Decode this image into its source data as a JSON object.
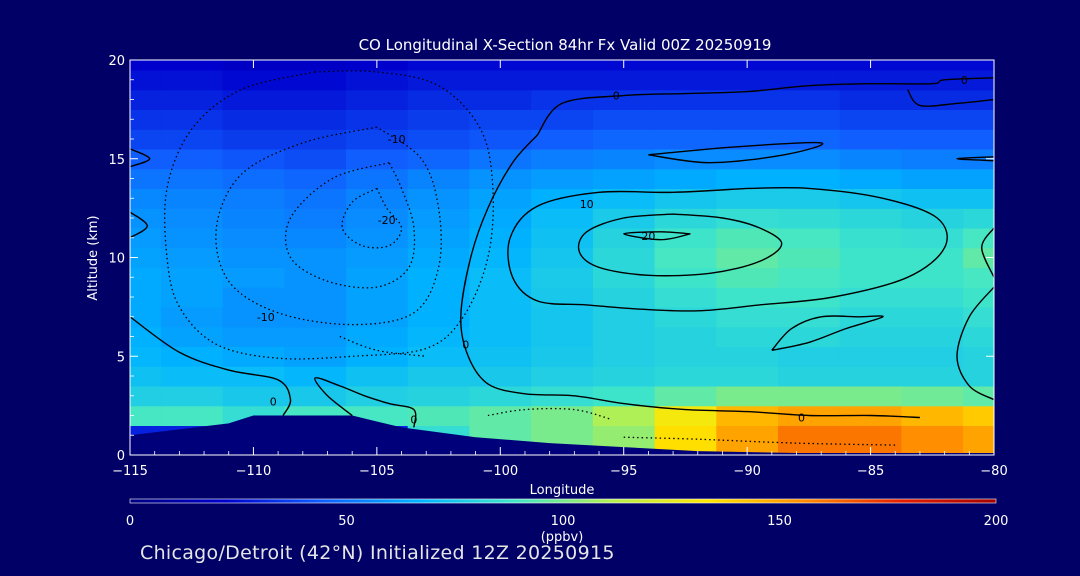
{
  "chart_data": {
    "type": "heatmap",
    "title": "CO Longitudinal X-Section 84hr  Fx Valid 00Z 20250919",
    "xlabel": "Longitude",
    "ylabel": "Altitude (km)",
    "xlim": [
      -115,
      -80
    ],
    "ylim": [
      0,
      20
    ],
    "x_ticks": [
      -115,
      -110,
      -105,
      -100,
      -95,
      -90,
      -85,
      -80
    ],
    "x_tick_labels": [
      "−115",
      "−110",
      "−105",
      "−100",
      "−95",
      "−90",
      "−85",
      "−80"
    ],
    "y_ticks": [
      0,
      5,
      10,
      15,
      20
    ],
    "y_tick_labels": [
      "0",
      "5",
      "10",
      "15",
      "20"
    ],
    "colorbar": {
      "min": 0,
      "max": 200,
      "ticks": [
        0,
        50,
        100,
        150,
        200
      ],
      "tick_labels": [
        "0",
        "50",
        "100",
        "150",
        "200"
      ],
      "units": "(ppbv)",
      "colors": [
        "#000080",
        "#0000cd",
        "#1060ff",
        "#00b4ff",
        "#40e6c8",
        "#b4f050",
        "#ffe600",
        "#ff8c00",
        "#e62000",
        "#a00000"
      ]
    },
    "altitude_levels_km": [
      1,
      2,
      3,
      4,
      5,
      6,
      7,
      8,
      9,
      10,
      11,
      12,
      13,
      14,
      15,
      16,
      17,
      18,
      19,
      20
    ],
    "longitudes": [
      -115,
      -112.5,
      -110,
      -107.5,
      -105,
      -102.5,
      -100,
      -97.5,
      -95,
      -92.5,
      -90,
      -87.5,
      -85,
      -82.5,
      -80
    ],
    "co_ppbv": [
      [
        30,
        30,
        30,
        30,
        30,
        85,
        95,
        100,
        105,
        135,
        150,
        160,
        160,
        155,
        150
      ],
      [
        90,
        90,
        85,
        90,
        90,
        92,
        95,
        100,
        110,
        130,
        145,
        150,
        150,
        145,
        140
      ],
      [
        78,
        78,
        75,
        75,
        78,
        80,
        82,
        85,
        88,
        95,
        100,
        100,
        100,
        98,
        95
      ],
      [
        72,
        70,
        70,
        68,
        72,
        75,
        75,
        78,
        80,
        82,
        82,
        80,
        80,
        80,
        80
      ],
      [
        68,
        66,
        64,
        62,
        66,
        70,
        72,
        75,
        78,
        80,
        80,
        78,
        78,
        78,
        80
      ],
      [
        66,
        62,
        60,
        60,
        64,
        68,
        70,
        74,
        78,
        80,
        82,
        82,
        80,
        80,
        82
      ],
      [
        64,
        60,
        58,
        58,
        62,
        66,
        70,
        74,
        78,
        82,
        85,
        85,
        82,
        82,
        85
      ],
      [
        64,
        62,
        58,
        58,
        62,
        66,
        70,
        75,
        80,
        85,
        88,
        88,
        85,
        85,
        88
      ],
      [
        64,
        62,
        60,
        58,
        62,
        66,
        70,
        76,
        82,
        88,
        92,
        90,
        88,
        88,
        90
      ],
      [
        62,
        60,
        58,
        58,
        60,
        64,
        68,
        74,
        82,
        90,
        95,
        92,
        88,
        88,
        95
      ],
      [
        60,
        58,
        56,
        55,
        58,
        62,
        66,
        72,
        80,
        88,
        92,
        90,
        86,
        85,
        90
      ],
      [
        58,
        56,
        54,
        52,
        56,
        60,
        64,
        70,
        76,
        82,
        85,
        84,
        82,
        80,
        82
      ],
      [
        55,
        54,
        52,
        50,
        54,
        58,
        62,
        66,
        70,
        74,
        76,
        76,
        74,
        72,
        72
      ],
      [
        50,
        50,
        48,
        46,
        50,
        54,
        58,
        60,
        62,
        64,
        66,
        66,
        64,
        62,
        62
      ],
      [
        44,
        44,
        42,
        40,
        44,
        46,
        50,
        52,
        54,
        56,
        56,
        56,
        54,
        52,
        52
      ],
      [
        38,
        38,
        36,
        36,
        38,
        40,
        42,
        44,
        46,
        46,
        46,
        46,
        44,
        44,
        44
      ],
      [
        34,
        34,
        32,
        32,
        34,
        36,
        38,
        38,
        40,
        40,
        40,
        40,
        38,
        38,
        38
      ],
      [
        30,
        30,
        28,
        28,
        30,
        32,
        32,
        34,
        34,
        34,
        34,
        34,
        32,
        32,
        32
      ],
      [
        26,
        26,
        24,
        24,
        26,
        28,
        28,
        28,
        28,
        28,
        28,
        28,
        28,
        28,
        28
      ],
      [
        22,
        22,
        20,
        20,
        22,
        24,
        24,
        24,
        24,
        24,
        24,
        24,
        24,
        24,
        24
      ]
    ],
    "terrain_km": [
      [
        -115,
        1.0
      ],
      [
        -111,
        1.6
      ],
      [
        -110,
        2.0
      ],
      [
        -106,
        2.0
      ],
      [
        -104,
        1.4
      ],
      [
        -101,
        0.9
      ],
      [
        -98,
        0.6
      ],
      [
        -95,
        0.4
      ],
      [
        -92,
        0.2
      ],
      [
        -88,
        0.1
      ],
      [
        -80,
        0.1
      ]
    ],
    "contours": [
      {
        "label": "0",
        "style": "solid",
        "points": [
          [
            -98.5,
            16.2
          ],
          [
            -97.5,
            17.8
          ],
          [
            -95,
            18.2
          ],
          [
            -92.5,
            18.3
          ],
          [
            -90,
            18.4
          ],
          [
            -87.5,
            18.7
          ],
          [
            -85,
            18.8
          ],
          [
            -82.5,
            18.8
          ],
          [
            -82,
            19.0
          ],
          [
            -80,
            19.1
          ]
        ]
      },
      {
        "label": "0",
        "style": "solid",
        "points": [
          [
            -98.5,
            16.2
          ],
          [
            -99.5,
            14.8
          ],
          [
            -100.5,
            12.5
          ],
          [
            -101.2,
            10.0
          ],
          [
            -101.6,
            7.0
          ],
          [
            -101.3,
            5.0
          ],
          [
            -100.5,
            3.6
          ],
          [
            -99.0,
            3.1
          ],
          [
            -97.0,
            3.0
          ],
          [
            -95.0,
            2.6
          ],
          [
            -92.5,
            2.3
          ],
          [
            -90.0,
            2.2
          ],
          [
            -87.5,
            2.0
          ],
          [
            -85.0,
            2.0
          ],
          [
            -83.0,
            1.9
          ]
        ]
      },
      {
        "label": "10",
        "style": "solid",
        "points": [
          [
            -90.0,
            13.5
          ],
          [
            -93.0,
            13.3
          ],
          [
            -96.0,
            13.3
          ],
          [
            -98.5,
            12.6
          ],
          [
            -99.6,
            11.0
          ],
          [
            -99.5,
            9.0
          ],
          [
            -98.5,
            7.8
          ],
          [
            -96.5,
            7.6
          ],
          [
            -94.5,
            7.4
          ],
          [
            -92.0,
            7.3
          ],
          [
            -89.5,
            7.6
          ],
          [
            -86.5,
            8.0
          ],
          [
            -83.5,
            9.0
          ],
          [
            -82.0,
            10.5
          ],
          [
            -82.3,
            12.0
          ],
          [
            -84.5,
            13.0
          ],
          [
            -87.5,
            13.5
          ],
          [
            -90.0,
            13.5
          ]
        ]
      },
      {
        "label": "10",
        "style": "solid",
        "points": [
          [
            -93.0,
            12.2
          ],
          [
            -95.0,
            12.0
          ],
          [
            -96.5,
            11.3
          ],
          [
            -96.8,
            10.3
          ],
          [
            -96.0,
            9.5
          ],
          [
            -94.0,
            9.1
          ],
          [
            -91.5,
            9.2
          ],
          [
            -89.5,
            9.8
          ],
          [
            -88.6,
            10.7
          ],
          [
            -89.5,
            11.5
          ],
          [
            -91.0,
            12.0
          ],
          [
            -93.0,
            12.2
          ]
        ]
      },
      {
        "label": "20",
        "style": "solid",
        "points": [
          [
            -92.3,
            11.2
          ],
          [
            -93.5,
            11.3
          ],
          [
            -95.0,
            11.2
          ],
          [
            -93.5,
            10.9
          ],
          [
            -92.3,
            11.2
          ]
        ]
      },
      {
        "label": "10",
        "style": "solid",
        "points": [
          [
            -89.0,
            5.3
          ],
          [
            -87.5,
            5.7
          ],
          [
            -86.0,
            6.4
          ],
          [
            -84.5,
            7.0
          ],
          [
            -85.5,
            7.0
          ],
          [
            -87.0,
            7.0
          ],
          [
            -88.2,
            6.4
          ],
          [
            -89.0,
            5.3
          ]
        ]
      },
      {
        "label": "10",
        "style": "solid",
        "points": [
          [
            -94.0,
            15.2
          ],
          [
            -90.5,
            15.6
          ],
          [
            -87.0,
            15.8
          ],
          [
            -88.5,
            15.2
          ],
          [
            -91.5,
            14.8
          ],
          [
            -94.0,
            15.2
          ]
        ]
      },
      {
        "label": "0",
        "style": "solid",
        "points": [
          [
            -80.0,
            18.0
          ],
          [
            -81.5,
            17.8
          ],
          [
            -83.0,
            17.7
          ],
          [
            -83.5,
            18.5
          ]
        ]
      },
      {
        "label": "0",
        "style": "solid",
        "points": [
          [
            -115.0,
            7.0
          ],
          [
            -113.0,
            5.2
          ],
          [
            -111.0,
            4.3
          ],
          [
            -109.0,
            3.8
          ],
          [
            -108.5,
            2.8
          ],
          [
            -108.8,
            2.0
          ]
        ]
      },
      {
        "label": "0",
        "style": "solid",
        "points": [
          [
            -106.0,
            2.0
          ],
          [
            -107.0,
            3.0
          ],
          [
            -107.5,
            3.9
          ],
          [
            -106.5,
            3.5
          ],
          [
            -105.5,
            3.0
          ],
          [
            -104.5,
            2.6
          ],
          [
            -103.5,
            2.3
          ],
          [
            -103.5,
            1.4
          ]
        ]
      },
      {
        "label": "0",
        "style": "solid",
        "points": [
          [
            -80.0,
            8.5
          ],
          [
            -81.0,
            7.0
          ],
          [
            -81.5,
            5.0
          ],
          [
            -81.0,
            3.5
          ],
          [
            -80.0,
            2.8
          ]
        ]
      },
      {
        "label": "0",
        "style": "solid",
        "points": [
          [
            -80.0,
            11.5
          ],
          [
            -80.5,
            10.5
          ],
          [
            -80.0,
            9.0
          ]
        ]
      },
      {
        "label": "0",
        "style": "solid",
        "points": [
          [
            -80.0,
            14.9
          ],
          [
            -81.5,
            15.0
          ],
          [
            -80.0,
            15.1
          ]
        ]
      },
      {
        "label": "",
        "style": "solid",
        "points": [
          [
            -115.0,
            15.5
          ],
          [
            -114.2,
            15.0
          ],
          [
            -115.0,
            14.6
          ]
        ]
      },
      {
        "label": "",
        "style": "solid",
        "points": [
          [
            -115.0,
            12.3
          ],
          [
            -114.3,
            11.6
          ],
          [
            -115.0,
            11.0
          ]
        ]
      },
      {
        "label": "-10",
        "style": "dotted",
        "points": [
          [
            -107.5,
            19.4
          ],
          [
            -110.5,
            18.5
          ],
          [
            -112.5,
            16.5
          ],
          [
            -113.5,
            13.5
          ],
          [
            -113.5,
            10.0
          ],
          [
            -113.0,
            7.5
          ],
          [
            -111.5,
            5.6
          ],
          [
            -109.0,
            4.9
          ],
          [
            -106.0,
            5.0
          ],
          [
            -103.0,
            5.4
          ],
          [
            -101.5,
            7.0
          ],
          [
            -100.5,
            10.0
          ],
          [
            -100.3,
            13.5
          ],
          [
            -100.8,
            16.5
          ],
          [
            -102.5,
            18.7
          ],
          [
            -105.0,
            19.4
          ],
          [
            -107.5,
            19.4
          ]
        ]
      },
      {
        "label": "-10",
        "style": "dotted",
        "points": [
          [
            -105.0,
            16.6
          ],
          [
            -108.0,
            15.8
          ],
          [
            -110.5,
            14.2
          ],
          [
            -111.5,
            11.5
          ],
          [
            -111.0,
            8.8
          ],
          [
            -109.0,
            7.2
          ],
          [
            -106.0,
            6.6
          ],
          [
            -103.5,
            7.2
          ],
          [
            -102.5,
            9.5
          ],
          [
            -102.5,
            12.5
          ],
          [
            -103.2,
            15.0
          ],
          [
            -105.0,
            16.6
          ]
        ]
      },
      {
        "label": "-10",
        "style": "dotted",
        "points": [
          [
            -104.5,
            14.8
          ],
          [
            -106.8,
            14.0
          ],
          [
            -108.5,
            12.0
          ],
          [
            -108.5,
            10.0
          ],
          [
            -107.0,
            8.8
          ],
          [
            -105.0,
            8.5
          ],
          [
            -103.7,
            9.5
          ],
          [
            -103.5,
            11.5
          ],
          [
            -104.0,
            13.5
          ],
          [
            -104.5,
            14.8
          ]
        ]
      },
      {
        "label": "-20",
        "style": "dotted",
        "points": [
          [
            -105.0,
            13.5
          ],
          [
            -106.0,
            12.8
          ],
          [
            -106.4,
            11.5
          ],
          [
            -105.6,
            10.6
          ],
          [
            -104.5,
            10.6
          ],
          [
            -104.0,
            11.5
          ],
          [
            -104.6,
            12.5
          ],
          [
            -105.0,
            13.5
          ]
        ]
      },
      {
        "label": "",
        "style": "dotted",
        "points": [
          [
            -106.5,
            6.0
          ],
          [
            -105.0,
            5.3
          ],
          [
            -103.0,
            5.0
          ]
        ]
      },
      {
        "label": "",
        "style": "dotted",
        "points": [
          [
            -100.5,
            2.0
          ],
          [
            -99.0,
            2.3
          ],
          [
            -97.0,
            2.3
          ],
          [
            -95.5,
            1.8
          ]
        ]
      },
      {
        "label": "",
        "style": "dotted",
        "points": [
          [
            -95.0,
            0.9
          ],
          [
            -92.0,
            0.8
          ],
          [
            -88.0,
            0.6
          ],
          [
            -84.0,
            0.5
          ]
        ]
      }
    ],
    "contour_labels": [
      {
        "text": "0",
        "x": -95.3,
        "y": 18.2
      },
      {
        "text": "0",
        "x": -81.2,
        "y": 19.0
      },
      {
        "text": "0",
        "x": -101.4,
        "y": 5.6
      },
      {
        "text": "0",
        "x": -109.2,
        "y": 2.7
      },
      {
        "text": "0",
        "x": -103.5,
        "y": 1.8
      },
      {
        "text": "0",
        "x": -87.8,
        "y": 1.9
      },
      {
        "text": "10",
        "x": -96.5,
        "y": 12.7
      },
      {
        "text": "20",
        "x": -94.0,
        "y": 11.1
      },
      {
        "text": "-10",
        "x": -104.2,
        "y": 16.0
      },
      {
        "text": "-10",
        "x": -109.5,
        "y": 7.0
      },
      {
        "text": "-20",
        "x": -104.6,
        "y": 11.9
      }
    ]
  },
  "footer": {
    "text": "Chicago/Detroit (42°N) Initialized 12Z 20250915"
  }
}
